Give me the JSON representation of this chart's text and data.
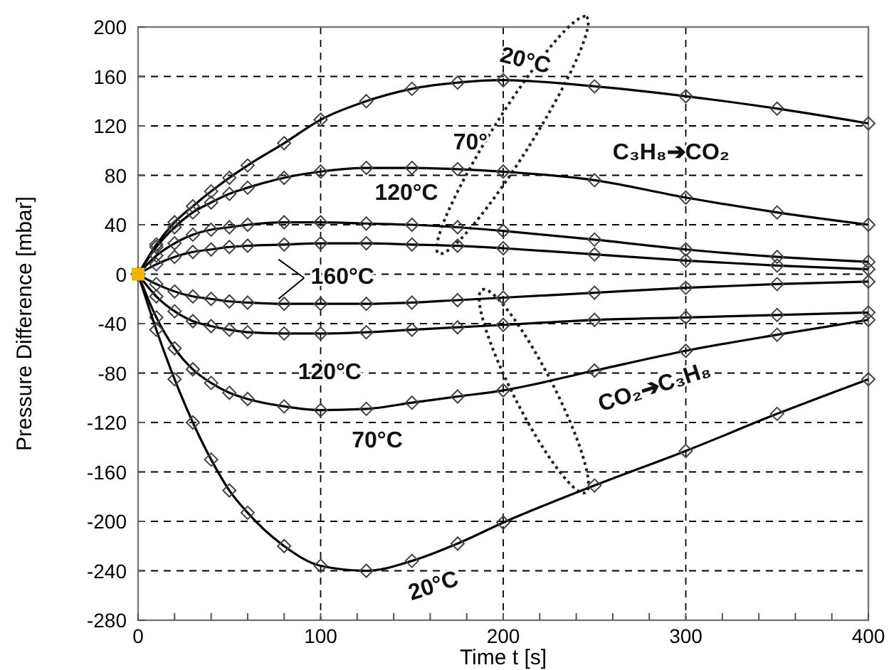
{
  "chart_data": {
    "type": "line",
    "xlabel": "Time t [s]",
    "ylabel": "Pressure Difference [mbar]",
    "x": [
      0,
      10,
      20,
      30,
      40,
      50,
      60,
      80,
      100,
      125,
      150,
      175,
      200,
      250,
      300,
      350,
      400
    ],
    "xlim": [
      0,
      400
    ],
    "xticks": [
      0,
      {
        "value": 20,
        "label": null
      },
      {
        "value": 40,
        "label": null
      },
      {
        "value": 60,
        "label": null
      },
      {
        "value": 80,
        "label": null
      },
      100,
      {
        "value": 120,
        "label": null
      },
      {
        "value": 140,
        "label": null
      },
      {
        "value": 160,
        "label": null
      },
      {
        "value": 180,
        "label": null
      },
      200,
      {
        "value": 220,
        "label": null
      },
      {
        "value": 240,
        "label": null
      },
      {
        "value": 260,
        "label": null
      },
      {
        "value": 280,
        "label": null
      },
      300,
      {
        "value": 320,
        "label": null
      },
      {
        "value": 340,
        "label": null
      },
      {
        "value": 360,
        "label": null
      },
      {
        "value": 380,
        "label": null
      },
      400
    ],
    "ylim": [
      -280,
      200
    ],
    "yticks": [
      -280,
      -240,
      -200,
      -160,
      -120,
      -80,
      -40,
      0,
      40,
      80,
      120,
      160,
      200
    ],
    "grid": true,
    "marker": "diamond",
    "line_style": "solid",
    "series": [
      {
        "color": "#000000",
        "values": [
          0,
          24,
          42,
          55,
          67,
          78,
          88,
          106,
          125,
          140,
          150,
          155,
          157,
          152,
          144,
          134,
          122
        ]
      },
      {
        "color": "#000000",
        "values": [
          0,
          22,
          38,
          50,
          58,
          65,
          70,
          78,
          83,
          86,
          86,
          85,
          83,
          76,
          62,
          50,
          40
        ]
      },
      {
        "color": "#000000",
        "values": [
          0,
          15,
          25,
          32,
          36,
          38,
          40,
          42,
          42,
          41,
          40,
          38,
          35,
          28,
          20,
          14,
          10
        ]
      },
      {
        "color": "#000000",
        "values": [
          0,
          8,
          14,
          18,
          20,
          22,
          23,
          24,
          25,
          25,
          24,
          23,
          21,
          16,
          11,
          7,
          4
        ]
      },
      {
        "color": "#000000",
        "values": [
          0,
          -8,
          -14,
          -18,
          -20,
          -22,
          -23,
          -24,
          -24,
          -24,
          -23,
          -21,
          -19,
          -15,
          -11,
          -8,
          -6
        ]
      },
      {
        "color": "#000000",
        "values": [
          0,
          -18,
          -30,
          -38,
          -42,
          -45,
          -47,
          -48,
          -48,
          -47,
          -45,
          -43,
          -41,
          -37,
          -35,
          -33,
          -31
        ]
      },
      {
        "color": "#000000",
        "values": [
          0,
          -35,
          -60,
          -77,
          -88,
          -96,
          -101,
          -107,
          -110,
          -109,
          -104,
          -99,
          -94,
          -78,
          -62,
          -49,
          -37
        ]
      },
      {
        "color": "#000000",
        "values": [
          0,
          -45,
          -85,
          -120,
          -150,
          -175,
          -193,
          -220,
          -236,
          -240,
          -232,
          -218,
          -201,
          -171,
          -143,
          -113,
          -85
        ]
      },
      {
        "type": "scatter",
        "marker": "square",
        "color": "#f0b400",
        "x": [
          0
        ],
        "values": [
          0
        ]
      }
    ],
    "annotations": [
      "20°C",
      "70°",
      "120°C",
      "160°C",
      "120°C",
      "70°C",
      "20°C",
      "C₃H₈➔CO₂",
      "CO₂➔C₃H₈"
    ]
  }
}
